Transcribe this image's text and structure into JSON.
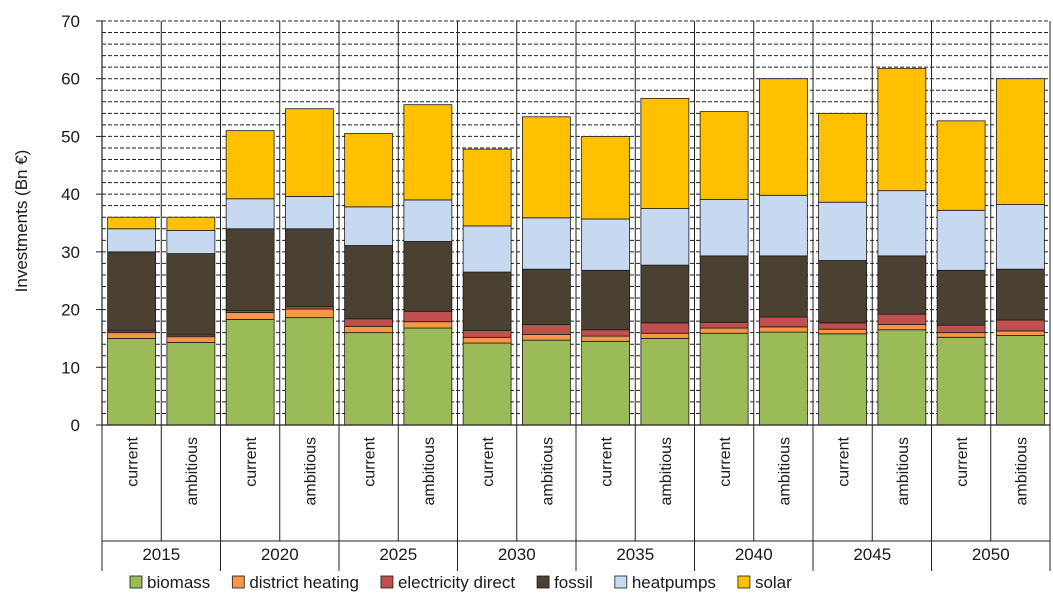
{
  "chart_data": {
    "type": "bar",
    "stacked": true,
    "ylabel": "Investments (Bn €)",
    "ylim": [
      0,
      70
    ],
    "y_ticks": [
      0,
      10,
      20,
      30,
      40,
      50,
      60,
      70
    ],
    "y_minor_step": 2,
    "grid": true,
    "legend_position": "bottom",
    "groups": [
      "2015",
      "2020",
      "2025",
      "2030",
      "2035",
      "2040",
      "2045",
      "2050"
    ],
    "scenarios": [
      "current",
      "ambitious"
    ],
    "categories": [
      "current",
      "ambitious",
      "current",
      "ambitious",
      "current",
      "ambitious",
      "current",
      "ambitious",
      "current",
      "ambitious",
      "current",
      "ambitious",
      "current",
      "ambitious",
      "current",
      "ambitious"
    ],
    "series": [
      {
        "name": "biomass",
        "color": "#9BBB59",
        "values": [
          15.0,
          14.3,
          18.3,
          18.6,
          16.0,
          16.8,
          14.2,
          14.7,
          14.5,
          15.0,
          15.9,
          16.1,
          15.8,
          16.5,
          15.2,
          15.5
        ]
      },
      {
        "name": "district heating",
        "color": "#F79646",
        "values": [
          1.0,
          1.0,
          1.2,
          1.5,
          1.1,
          1.1,
          1.0,
          1.0,
          0.9,
          0.9,
          0.9,
          0.9,
          0.8,
          0.9,
          0.8,
          0.8
        ]
      },
      {
        "name": "electricity direct",
        "color": "#C0504D",
        "values": [
          0.3,
          0.3,
          0.3,
          0.4,
          1.3,
          1.8,
          1.2,
          1.7,
          1.1,
          1.8,
          1.0,
          1.7,
          1.1,
          1.8,
          1.3,
          1.9
        ]
      },
      {
        "name": "fossil",
        "color": "#4A4132",
        "values": [
          13.7,
          14.1,
          14.2,
          13.5,
          12.7,
          12.1,
          10.1,
          9.6,
          10.3,
          10.0,
          11.5,
          10.6,
          10.8,
          10.1,
          9.5,
          8.8
        ]
      },
      {
        "name": "heatpumps",
        "color": "#C6D9F1",
        "values": [
          4.0,
          4.0,
          5.2,
          5.6,
          6.7,
          7.2,
          8.0,
          8.9,
          8.9,
          9.8,
          9.8,
          10.5,
          10.1,
          11.3,
          10.4,
          11.2
        ]
      },
      {
        "name": "solar",
        "color": "#FFC000",
        "values": [
          2.0,
          2.3,
          11.8,
          15.2,
          12.7,
          16.5,
          13.3,
          17.5,
          14.3,
          19.1,
          15.2,
          20.2,
          15.4,
          21.2,
          15.5,
          21.8
        ]
      }
    ]
  }
}
